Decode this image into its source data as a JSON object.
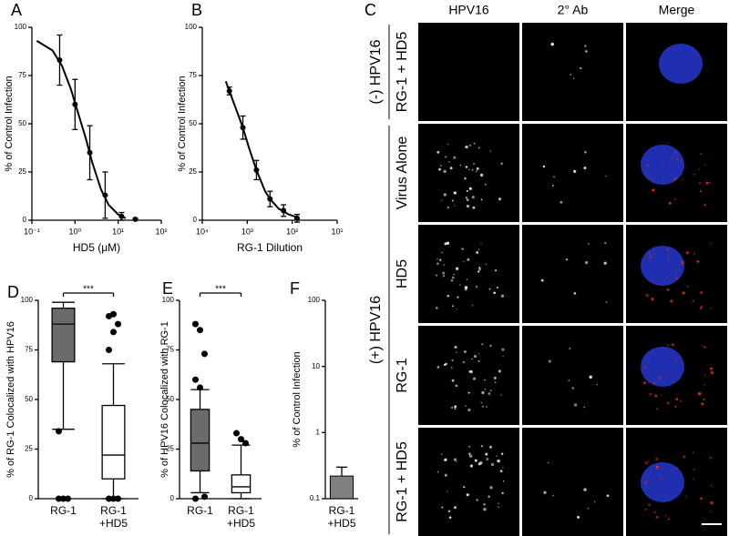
{
  "chart_data": [
    {
      "panel": "A",
      "type": "line",
      "ylabel": "% of Control Infection",
      "xlabel": "HD5 (μM)",
      "log_x": true,
      "x": [
        0.44,
        1,
        2.2,
        5,
        12,
        25
      ],
      "values": [
        83,
        60,
        35,
        13,
        2,
        0.5
      ],
      "errors": [
        13,
        13,
        14,
        12,
        2,
        0.5
      ],
      "fit_x": [
        0.13,
        0.3,
        0.5,
        0.8,
        1.2,
        1.8,
        2.5,
        4,
        6,
        10,
        15
      ],
      "fit_values": [
        93,
        88,
        80,
        68,
        55,
        42,
        30,
        16,
        8,
        3,
        1
      ],
      "xlim": [
        0.1,
        100
      ],
      "ylim": [
        0,
        100
      ],
      "xticks": [
        {
          "value": 0.1,
          "label": "10⁻¹"
        },
        {
          "value": 1,
          "label": "10⁰"
        },
        {
          "value": 10,
          "label": "10¹"
        },
        {
          "value": 100,
          "label": "10²"
        }
      ],
      "yticks": [
        0,
        25,
        50,
        75,
        100
      ],
      "color": "#000000"
    },
    {
      "panel": "B",
      "type": "line",
      "ylabel": "% of Control Infection",
      "xlabel": "RG-1 Dilution",
      "log_x": true,
      "x": [
        2500,
        1250,
        625,
        312,
        156,
        78
      ],
      "values": [
        67,
        48,
        26,
        11,
        5,
        1
      ],
      "errors": [
        2,
        6,
        5,
        4,
        3,
        2
      ],
      "fit_x": [
        3000,
        2500,
        1800,
        1250,
        900,
        625,
        400,
        312,
        200,
        120,
        78
      ],
      "fit_values": [
        72,
        67,
        58,
        48,
        37,
        26,
        15,
        11,
        6,
        3,
        1.5
      ],
      "xlim": [
        10000,
        10
      ],
      "ylim": [
        0,
        100
      ],
      "xticks": [
        {
          "value": 10000,
          "label": "10⁴"
        },
        {
          "value": 1000,
          "label": "10³"
        },
        {
          "value": 100,
          "label": "10²"
        },
        {
          "value": 10,
          "label": "10¹"
        }
      ],
      "yticks": [
        0,
        25,
        50,
        75,
        100
      ],
      "color": "#000000"
    },
    {
      "panel": "D",
      "type": "box",
      "ylabel": "% of RG-1 Colocalized with HPV16",
      "significance": "***",
      "categories": [
        "RG-1",
        "RG-1\n+HD5"
      ],
      "colors": [
        "#6b6b6b",
        "#ffffff"
      ],
      "boxes": [
        {
          "min": 35,
          "q1": 69,
          "median": 88,
          "q3": 96,
          "max": 99,
          "outliers": [
            34,
            0,
            0,
            0
          ]
        },
        {
          "min": 0,
          "q1": 10,
          "median": 22,
          "q3": 47,
          "max": 68,
          "outliers": [
            75,
            84,
            88,
            92,
            93,
            0,
            0,
            0
          ]
        }
      ],
      "ylim": [
        0,
        100
      ],
      "yticks": [
        0,
        25,
        50,
        75,
        100
      ]
    },
    {
      "panel": "E",
      "type": "box",
      "ylabel": "% of HPV16 Colocalized with RG-1",
      "significance": "***",
      "categories": [
        "RG-1",
        "RG-1\n+HD5"
      ],
      "colors": [
        "#6b6b6b",
        "#ffffff"
      ],
      "boxes": [
        {
          "min": 3,
          "q1": 14,
          "median": 28,
          "q3": 45,
          "max": 55,
          "outliers": [
            88,
            85,
            73,
            60,
            56,
            1,
            0
          ]
        },
        {
          "min": 0,
          "q1": 3,
          "median": 6,
          "q3": 12,
          "max": 27,
          "outliers": [
            33,
            30,
            28
          ]
        }
      ],
      "ylim": [
        0,
        100
      ],
      "yticks": [
        0,
        25,
        50,
        75,
        100
      ]
    },
    {
      "panel": "F",
      "type": "bar",
      "ylabel": "% of Control Infection",
      "log_y": true,
      "categories": [
        "RG-1\n+HD5"
      ],
      "values": [
        0.22
      ],
      "errors": [
        0.08
      ],
      "color": "#808080",
      "ylim": [
        0.1,
        100
      ],
      "yticks": [
        0.1,
        1,
        10,
        100
      ]
    }
  ],
  "microscopy": {
    "panel": "C",
    "columns": [
      "HPV16",
      "2° Ab",
      "Merge"
    ],
    "groups": [
      {
        "label": "(-) HPV16",
        "rows": [
          "RG-1 + HD5"
        ]
      },
      {
        "label": "(+) HPV16",
        "rows": [
          "Virus Alone",
          "HD5",
          "RG-1",
          "RG-1 + HD5"
        ]
      }
    ]
  }
}
